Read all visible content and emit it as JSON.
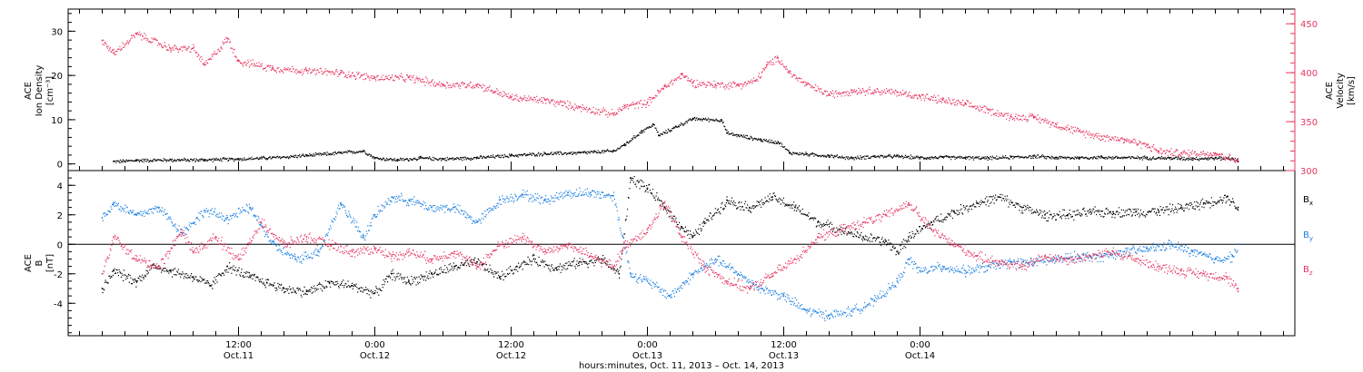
{
  "chart_data": [
    {
      "type": "scatter",
      "panel": "top",
      "ylabel_left": [
        "ACE",
        "Ion Density",
        "[cm⁻³]"
      ],
      "ylabel_right": [
        "ACE",
        "Velocity",
        "[km/s]"
      ],
      "ylim_left": [
        -1.5,
        35
      ],
      "yticks_left": [
        0,
        10,
        20,
        30
      ],
      "ylim_right": [
        300,
        465
      ],
      "yticks_right": [
        300,
        350,
        400,
        450
      ],
      "x_unit": "hours since Oct. 11, 2013 00:00",
      "series": [
        {
          "axis": "left",
          "color": "#000000",
          "points": [
            [
              1,
              0.6
            ],
            [
              3,
              0.9
            ],
            [
              6,
              1.0
            ],
            [
              9,
              1.0
            ],
            [
              12,
              1.2
            ],
            [
              15,
              1.5
            ],
            [
              18,
              2.0
            ],
            [
              21,
              2.6
            ],
            [
              23,
              3.0
            ],
            [
              24,
              1.4
            ],
            [
              26,
              1.0
            ],
            [
              28,
              1.4
            ],
            [
              30,
              1.2
            ],
            [
              33,
              1.5
            ],
            [
              36,
              2.0
            ],
            [
              39,
              2.4
            ],
            [
              42,
              2.6
            ],
            [
              45,
              3.0
            ],
            [
              46,
              4.5
            ],
            [
              47.5,
              7.5
            ],
            [
              48.5,
              9.0
            ],
            [
              49,
              6.5
            ],
            [
              50.5,
              8.5
            ],
            [
              52,
              10.3
            ],
            [
              54.5,
              10.0
            ],
            [
              55,
              7.0
            ],
            [
              56,
              6.5
            ],
            [
              58,
              5.5
            ],
            [
              59.5,
              5.0
            ],
            [
              60.5,
              2.6
            ],
            [
              62,
              2.3
            ],
            [
              64,
              1.9
            ],
            [
              66,
              1.4
            ],
            [
              68,
              1.8
            ],
            [
              70,
              1.8
            ],
            [
              72,
              1.5
            ],
            [
              74,
              1.6
            ],
            [
              76,
              1.5
            ],
            [
              78,
              1.4
            ],
            [
              80,
              1.6
            ],
            [
              82,
              1.8
            ],
            [
              84,
              1.5
            ],
            [
              86,
              1.5
            ],
            [
              88,
              1.6
            ],
            [
              90,
              1.5
            ],
            [
              92,
              1.5
            ],
            [
              94,
              1.4
            ],
            [
              96,
              1.3
            ],
            [
              98,
              1.4
            ],
            [
              99.5,
              1.3
            ],
            [
              100,
              0.5
            ]
          ]
        },
        {
          "axis": "right",
          "color": "#e8355f",
          "points": [
            [
              0,
              433
            ],
            [
              1,
              420
            ],
            [
              3,
              440
            ],
            [
              6,
              425
            ],
            [
              8,
              425
            ],
            [
              9,
              408
            ],
            [
              11,
              435
            ],
            [
              12,
              412
            ],
            [
              15,
              405
            ],
            [
              18,
              402
            ],
            [
              21,
              400
            ],
            [
              24,
              395
            ],
            [
              27,
              395
            ],
            [
              30,
              388
            ],
            [
              33,
              388
            ],
            [
              36,
              375
            ],
            [
              39,
              372
            ],
            [
              42,
              365
            ],
            [
              45,
              358
            ],
            [
              46,
              366
            ],
            [
              48,
              370
            ],
            [
              49.5,
              386
            ],
            [
              51,
              398
            ],
            [
              52,
              390
            ],
            [
              54,
              388
            ],
            [
              56,
              388
            ],
            [
              57.5,
              392
            ],
            [
              58.5,
              408
            ],
            [
              59.5,
              415
            ],
            [
              60.5,
              400
            ],
            [
              62,
              388
            ],
            [
              64,
              378
            ],
            [
              66,
              382
            ],
            [
              68,
              382
            ],
            [
              70,
              380
            ],
            [
              72,
              376
            ],
            [
              74,
              372
            ],
            [
              76,
              368
            ],
            [
              78,
              362
            ],
            [
              80,
              355
            ],
            [
              82,
              355
            ],
            [
              84,
              347
            ],
            [
              86,
              340
            ],
            [
              88,
              335
            ],
            [
              90,
              332
            ],
            [
              92,
              326
            ],
            [
              93,
              320
            ],
            [
              95,
              318
            ],
            [
              98,
              318
            ],
            [
              100,
              310
            ]
          ]
        }
      ]
    },
    {
      "type": "scatter",
      "panel": "bottom",
      "ylabel_left": [
        "ACE",
        "B",
        "[nT]"
      ],
      "ylim": [
        -6.2,
        5.0
      ],
      "yticks": [
        -4,
        -2,
        0,
        2,
        4
      ],
      "legend_placement": "right",
      "series": [
        {
          "name": "Bₓ",
          "color": "#000000",
          "points": [
            [
              0,
              -3.0
            ],
            [
              1,
              -1.8
            ],
            [
              3,
              -2.5
            ],
            [
              4.5,
              -1.4
            ],
            [
              6,
              -1.8
            ],
            [
              8,
              -2.2
            ],
            [
              9.5,
              -2.8
            ],
            [
              11,
              -1.5
            ],
            [
              13,
              -2.2
            ],
            [
              14.5,
              -2.6
            ],
            [
              16,
              -3.0
            ],
            [
              18,
              -3.2
            ],
            [
              20,
              -2.6
            ],
            [
              22,
              -2.8
            ],
            [
              24,
              -3.3
            ],
            [
              25.5,
              -2.0
            ],
            [
              27,
              -2.5
            ],
            [
              29,
              -2.0
            ],
            [
              31,
              -1.5
            ],
            [
              33,
              -1.2
            ],
            [
              35,
              -2.2
            ],
            [
              36.5,
              -1.5
            ],
            [
              38,
              -1.0
            ],
            [
              40,
              -1.6
            ],
            [
              42,
              -1.2
            ],
            [
              44,
              -1.0
            ],
            [
              45.5,
              -2.0
            ],
            [
              46.5,
              4.5
            ],
            [
              48,
              3.8
            ],
            [
              49.5,
              2.5
            ],
            [
              51,
              1.2
            ],
            [
              52,
              0.5
            ],
            [
              53,
              1.5
            ],
            [
              55,
              3.0
            ],
            [
              57,
              2.5
            ],
            [
              59,
              3.2
            ],
            [
              61,
              2.5
            ],
            [
              63,
              1.5
            ],
            [
              65,
              1.0
            ],
            [
              67,
              0.5
            ],
            [
              69,
              0.2
            ],
            [
              70,
              -0.5
            ],
            [
              71,
              0.5
            ],
            [
              73,
              1.5
            ],
            [
              75,
              2.2
            ],
            [
              77,
              2.8
            ],
            [
              79,
              3.2
            ],
            [
              81,
              2.5
            ],
            [
              83,
              2.0
            ],
            [
              85,
              2.0
            ],
            [
              87,
              2.2
            ],
            [
              89,
              2.2
            ],
            [
              91,
              2.2
            ],
            [
              93,
              2.3
            ],
            [
              95,
              2.5
            ],
            [
              97,
              2.8
            ],
            [
              99,
              3.2
            ],
            [
              100,
              2.5
            ]
          ]
        },
        {
          "name": "B_y",
          "color": "#1a7fe0",
          "points": [
            [
              0,
              1.8
            ],
            [
              1,
              2.8
            ],
            [
              3,
              2.0
            ],
            [
              5,
              2.5
            ],
            [
              7,
              0.8
            ],
            [
              9,
              2.3
            ],
            [
              11,
              1.8
            ],
            [
              13,
              2.5
            ],
            [
              15,
              0.0
            ],
            [
              17,
              -1.0
            ],
            [
              19,
              -0.5
            ],
            [
              21,
              2.8
            ],
            [
              23,
              0.5
            ],
            [
              24,
              2.0
            ],
            [
              25.5,
              3.2
            ],
            [
              27,
              3.0
            ],
            [
              29,
              2.5
            ],
            [
              31,
              2.5
            ],
            [
              33,
              1.5
            ],
            [
              35,
              3.0
            ],
            [
              37,
              3.4
            ],
            [
              39,
              3.0
            ],
            [
              41,
              3.5
            ],
            [
              43,
              3.5
            ],
            [
              45,
              3.3
            ],
            [
              46.5,
              -2.0
            ],
            [
              48,
              -2.5
            ],
            [
              50,
              -3.5
            ],
            [
              52,
              -2.0
            ],
            [
              54,
              -1.0
            ],
            [
              56,
              -2.0
            ],
            [
              58,
              -3.0
            ],
            [
              60,
              -3.5
            ],
            [
              62,
              -4.5
            ],
            [
              64,
              -4.8
            ],
            [
              66,
              -4.5
            ],
            [
              68,
              -3.8
            ],
            [
              70,
              -2.5
            ],
            [
              71,
              -1.0
            ],
            [
              72,
              -1.8
            ],
            [
              74,
              -1.5
            ],
            [
              76,
              -1.8
            ],
            [
              78,
              -1.5
            ],
            [
              80,
              -1.2
            ],
            [
              82,
              -1.2
            ],
            [
              84,
              -1.0
            ],
            [
              86,
              -0.8
            ],
            [
              88,
              -0.8
            ],
            [
              90,
              -0.5
            ],
            [
              92,
              -0.3
            ],
            [
              94,
              0.0
            ],
            [
              96,
              -0.5
            ],
            [
              98,
              -1.0
            ],
            [
              99.5,
              -0.8
            ],
            [
              100,
              0.0
            ]
          ]
        },
        {
          "name": "B_z",
          "color": "#e8355f",
          "points": [
            [
              0,
              -2.0
            ],
            [
              1,
              0.5
            ],
            [
              3,
              -1.0
            ],
            [
              5,
              -1.5
            ],
            [
              7,
              1.0
            ],
            [
              8,
              -0.5
            ],
            [
              10,
              0.5
            ],
            [
              12,
              -1.0
            ],
            [
              14,
              1.5
            ],
            [
              16,
              0.0
            ],
            [
              18,
              0.5
            ],
            [
              20,
              0.0
            ],
            [
              22,
              -0.5
            ],
            [
              24,
              -0.3
            ],
            [
              25.5,
              -0.8
            ],
            [
              27,
              -0.5
            ],
            [
              29,
              -1.0
            ],
            [
              31,
              -0.5
            ],
            [
              33,
              -1.5
            ],
            [
              35,
              0.0
            ],
            [
              37,
              0.5
            ],
            [
              39,
              -0.5
            ],
            [
              41,
              0.0
            ],
            [
              43,
              -0.8
            ],
            [
              45,
              -1.5
            ],
            [
              46,
              0.0
            ],
            [
              48,
              1.0
            ],
            [
              49.5,
              2.8
            ],
            [
              51,
              0.5
            ],
            [
              53,
              -1.5
            ],
            [
              55,
              -2.5
            ],
            [
              57,
              -3.0
            ],
            [
              59,
              -2.0
            ],
            [
              61,
              -1.0
            ],
            [
              63,
              0.5
            ],
            [
              65,
              1.0
            ],
            [
              67,
              1.5
            ],
            [
              69,
              2.0
            ],
            [
              71,
              2.8
            ],
            [
              73,
              1.0
            ],
            [
              75,
              0.0
            ],
            [
              77,
              -0.8
            ],
            [
              79,
              -1.2
            ],
            [
              81,
              -1.5
            ],
            [
              83,
              -0.8
            ],
            [
              85,
              -1.0
            ],
            [
              87,
              -0.8
            ],
            [
              89,
              -0.5
            ],
            [
              91,
              -1.0
            ],
            [
              93,
              -1.5
            ],
            [
              95,
              -1.8
            ],
            [
              97,
              -2.0
            ],
            [
              99,
              -2.2
            ],
            [
              100,
              -3.2
            ]
          ]
        }
      ]
    }
  ],
  "x_axis": {
    "xlim_hours": [
      -3.0,
      105.0
    ],
    "ticks": [
      {
        "hour": 12,
        "time": "12:00",
        "date": "Oct.11"
      },
      {
        "hour": 24,
        "time": "0:00",
        "date": "Oct.12"
      },
      {
        "hour": 36,
        "time": "12:00",
        "date": "Oct.12"
      },
      {
        "hour": 48,
        "time": "0:00",
        "date": "Oct.13"
      },
      {
        "hour": 60,
        "time": "12:00",
        "date": "Oct.13"
      },
      {
        "hour": 72,
        "time": "0:00",
        "date": "Oct.14"
      }
    ],
    "xlabel": "hours:minutes, Oct. 11, 2013 – Oct. 14, 2013"
  },
  "legend": [
    {
      "label": "B",
      "sub": "x",
      "color": "#000000"
    },
    {
      "label": "B",
      "sub": "y",
      "color": "#1a7fe0"
    },
    {
      "label": "B",
      "sub": "z",
      "color": "#e8355f"
    }
  ]
}
